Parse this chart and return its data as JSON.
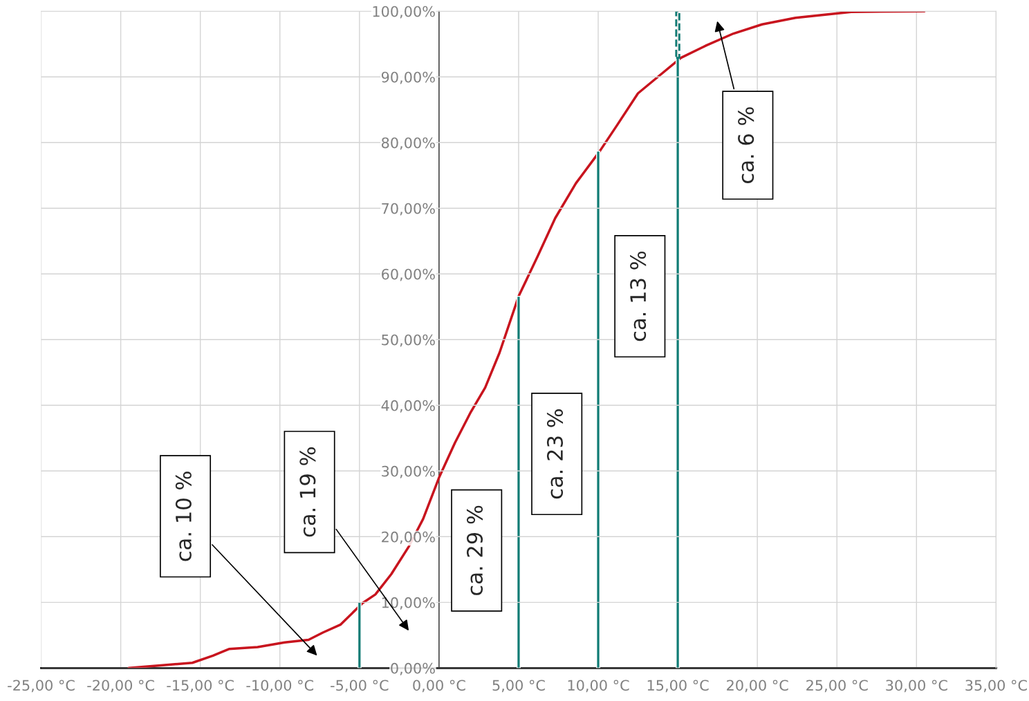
{
  "chart_data": {
    "type": "line",
    "series": [
      {
        "color": "#c8141e",
        "x": [
          -19.5,
          -17.5,
          -15.5,
          -14.2,
          -13.6,
          -13.2,
          -11.4,
          -9.7,
          -8.2,
          -7.3,
          -6.2,
          -4.8,
          -4.0,
          -3.0,
          -1.9,
          -1.0,
          0,
          1,
          2,
          2.9,
          3.8,
          5,
          6.2,
          7.3,
          8.6,
          10.1,
          11.2,
          12.5,
          13.8,
          15.2,
          16.8,
          18.5,
          20.3,
          22.4,
          25.9,
          30.5
        ],
        "values": [
          0,
          0.4,
          0.8,
          1.9,
          2.5,
          2.9,
          3.2,
          3.9,
          4.3,
          5.4,
          6.6,
          9.9,
          11.2,
          14.3,
          18.5,
          22.7,
          29,
          34.3,
          39,
          42.7,
          48,
          56.6,
          62.7,
          68.5,
          73.8,
          78.7,
          82.7,
          87.5,
          90.1,
          92.9,
          94.8,
          96.6,
          98,
          99,
          99.9,
          100
        ]
      },
      {
        "type": "bar",
        "color": "#0f7b74",
        "x": [
          -5,
          5,
          10,
          15
        ],
        "values": [
          10,
          56.6,
          78.7,
          92.9
        ]
      },
      {
        "type": "bar",
        "color": "#0f7b74",
        "x": [
          15
        ],
        "base": [
          92.9
        ],
        "values": [
          7.1
        ],
        "line_style": "dashed"
      }
    ],
    "xlim": [
      -25,
      35
    ],
    "xticks": [
      {
        "value": -25,
        "label": "-25,00 °C"
      },
      {
        "value": -20,
        "label": "-20,00 °C"
      },
      {
        "value": -15,
        "label": "-15,00 °C"
      },
      {
        "value": -10,
        "label": "-10,00 °C"
      },
      {
        "value": -5,
        "label": "-5,00 °C"
      },
      {
        "value": 0,
        "label": "0,00 °C"
      },
      {
        "value": 5,
        "label": "5,00 °C"
      },
      {
        "value": 10,
        "label": "10,00 °C"
      },
      {
        "value": 15,
        "label": "15,00 °C"
      },
      {
        "value": 20,
        "label": "20,00 °C"
      },
      {
        "value": 25,
        "label": "25,00 °C"
      },
      {
        "value": 30,
        "label": "30,00 °C"
      },
      {
        "value": 35,
        "label": "35,00 °C"
      }
    ],
    "ylim": [
      0,
      100
    ],
    "yticks": [
      {
        "value": 0,
        "label": "0,00%"
      },
      {
        "value": 10,
        "label": "10,00%"
      },
      {
        "value": 20,
        "label": "20,00%"
      },
      {
        "value": 30,
        "label": "30,00%"
      },
      {
        "value": 40,
        "label": "40,00%"
      },
      {
        "value": 50,
        "label": "50,00%"
      },
      {
        "value": 60,
        "label": "60,00%"
      },
      {
        "value": 70,
        "label": "70,00%"
      },
      {
        "value": 80,
        "label": "80,00%"
      },
      {
        "value": 90,
        "label": "90,00%"
      },
      {
        "value": 100,
        "label": "100,00%"
      }
    ],
    "grid": true,
    "annotations": [
      "ca. 10 %",
      "ca. 19 %",
      "ca. 29 %",
      "ca. 23 %",
      "ca. 13 %",
      "ca. 6 %"
    ]
  }
}
